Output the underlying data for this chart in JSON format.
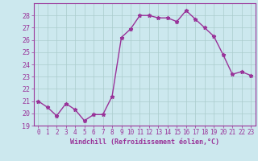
{
  "x": [
    0,
    1,
    2,
    3,
    4,
    5,
    6,
    7,
    8,
    9,
    10,
    11,
    12,
    13,
    14,
    15,
    16,
    17,
    18,
    19,
    20,
    21,
    22,
    23
  ],
  "y": [
    21.0,
    20.5,
    19.8,
    20.8,
    20.3,
    19.4,
    19.9,
    19.9,
    21.4,
    26.2,
    26.9,
    28.0,
    28.0,
    27.8,
    27.8,
    27.5,
    28.4,
    27.7,
    27.0,
    26.3,
    24.8,
    23.2,
    23.4,
    23.1
  ],
  "line_color": "#993399",
  "marker": "*",
  "marker_size": 3.5,
  "background_color": "#cce8ee",
  "grid_color": "#aacccc",
  "xlabel": "Windchill (Refroidissement éolien,°C)",
  "ylim": [
    19,
    29
  ],
  "xlim": [
    -0.5,
    23.5
  ],
  "yticks": [
    19,
    20,
    21,
    22,
    23,
    24,
    25,
    26,
    27,
    28
  ],
  "xticks": [
    0,
    1,
    2,
    3,
    4,
    5,
    6,
    7,
    8,
    9,
    10,
    11,
    12,
    13,
    14,
    15,
    16,
    17,
    18,
    19,
    20,
    21,
    22,
    23
  ],
  "tick_color": "#993399",
  "label_color": "#993399",
  "spine_color": "#993399",
  "xlabel_fontsize": 6.0,
  "ytick_fontsize": 6.0,
  "xtick_fontsize": 5.5
}
